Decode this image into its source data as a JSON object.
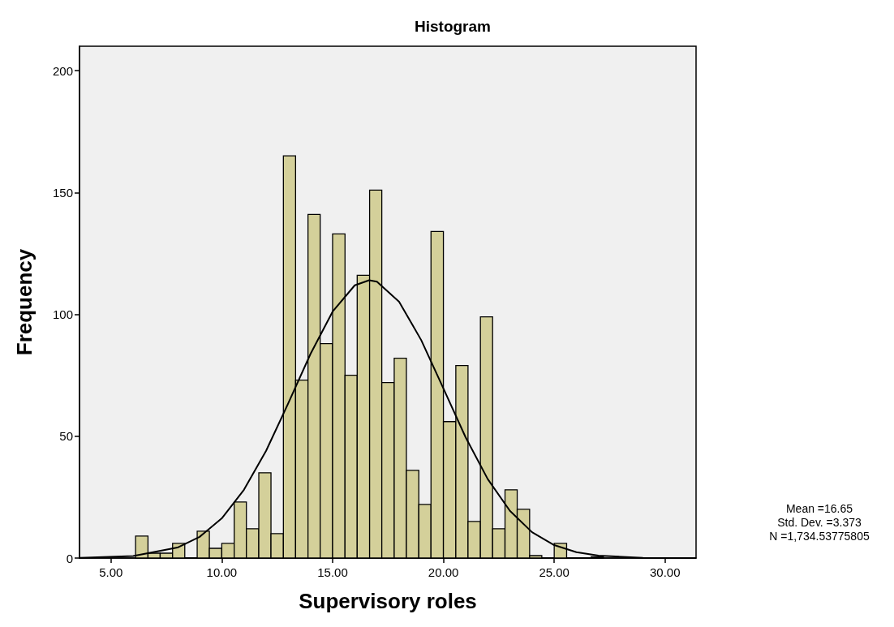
{
  "chart_data": {
    "type": "histogram",
    "title": "Histogram",
    "xlabel": "Supervisory roles",
    "ylabel": "Frequency",
    "xlim": [
      3.58,
      31.4
    ],
    "xticks": [
      {
        "value": 5,
        "label": "5.00"
      },
      {
        "value": 10,
        "label": "10.00"
      },
      {
        "value": 15,
        "label": "15.00"
      },
      {
        "value": 20,
        "label": "20.00"
      },
      {
        "value": 25,
        "label": "25.00"
      },
      {
        "value": 30,
        "label": "30.00"
      }
    ],
    "ylim": [
      0,
      210
    ],
    "yticks": [
      0,
      50,
      100,
      150,
      200
    ],
    "grid": false,
    "series": [
      {
        "color": "#d4d09a",
        "bins": [
          6.11,
          6.67,
          7.22,
          7.78,
          8.33,
          8.89,
          9.44,
          10,
          10.56,
          11.11,
          11.67,
          12.22,
          12.78,
          13.33,
          13.89,
          14.44,
          15,
          15.56,
          16.11,
          16.67,
          17.22,
          17.78,
          18.33,
          18.89,
          19.44,
          20,
          20.56,
          21.11,
          21.67,
          22.22,
          22.78,
          23.33,
          23.89,
          24.44,
          25,
          25.56,
          26.11,
          26.67,
          27.22
        ],
        "values": [
          9,
          2,
          2,
          6,
          0,
          11,
          4,
          6,
          23,
          12,
          35,
          10,
          165,
          73,
          141,
          88,
          133,
          75,
          116,
          151,
          72,
          82,
          36,
          22,
          134,
          56,
          79,
          15,
          99,
          12,
          28,
          20,
          1,
          0,
          6,
          0,
          0,
          0.5
        ]
      },
      {
        "type": "line",
        "color": "#000000",
        "x": [
          3.6,
          6,
          8,
          9,
          10,
          11,
          12,
          13,
          14,
          15,
          16,
          16.65,
          17,
          18,
          19,
          20,
          21,
          22,
          23,
          24,
          25,
          26,
          27,
          29,
          31.4
        ],
        "values": [
          0.1,
          0.8,
          4.3,
          8.7,
          16.3,
          28,
          44,
          63.5,
          83.7,
          101.1,
          111.9,
          114,
          113.4,
          105.2,
          89.4,
          69.6,
          49.6,
          32.4,
          19.4,
          10.6,
          5.3,
          2.4,
          1,
          0.1,
          0
        ]
      }
    ],
    "annotations": [
      "Mean =16.65",
      "Std. Dev. =3.373",
      "N =1,734.53775805"
    ]
  }
}
